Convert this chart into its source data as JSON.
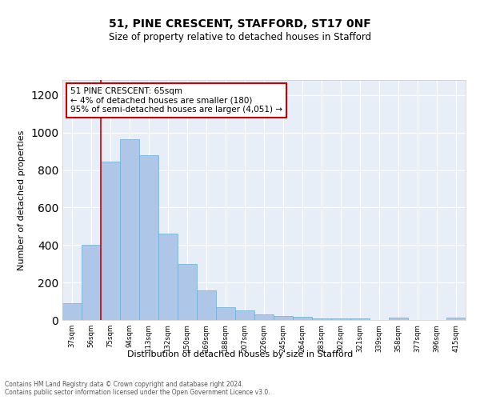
{
  "title1": "51, PINE CRESCENT, STAFFORD, ST17 0NF",
  "title2": "Size of property relative to detached houses in Stafford",
  "xlabel": "Distribution of detached houses by size in Stafford",
  "ylabel": "Number of detached properties",
  "categories": [
    "37sqm",
    "56sqm",
    "75sqm",
    "94sqm",
    "113sqm",
    "132sqm",
    "150sqm",
    "169sqm",
    "188sqm",
    "207sqm",
    "226sqm",
    "245sqm",
    "264sqm",
    "283sqm",
    "302sqm",
    "321sqm",
    "339sqm",
    "358sqm",
    "377sqm",
    "396sqm",
    "415sqm"
  ],
  "values": [
    90,
    400,
    843,
    965,
    878,
    460,
    300,
    160,
    70,
    50,
    30,
    22,
    15,
    10,
    10,
    10,
    0,
    12,
    0,
    0,
    12
  ],
  "bar_color": "#aec6e8",
  "bar_edge_color": "#6baed6",
  "vline_x": 1.5,
  "vline_color": "#cc0000",
  "annotation_text": "51 PINE CRESCENT: 65sqm\n← 4% of detached houses are smaller (180)\n95% of semi-detached houses are larger (4,051) →",
  "annotation_box_color": "#ffffff",
  "annotation_edge_color": "#cc0000",
  "footer": "Contains HM Land Registry data © Crown copyright and database right 2024.\nContains public sector information licensed under the Open Government Licence v3.0.",
  "ylim": [
    0,
    1280
  ],
  "plot_background": "#e8eef8"
}
